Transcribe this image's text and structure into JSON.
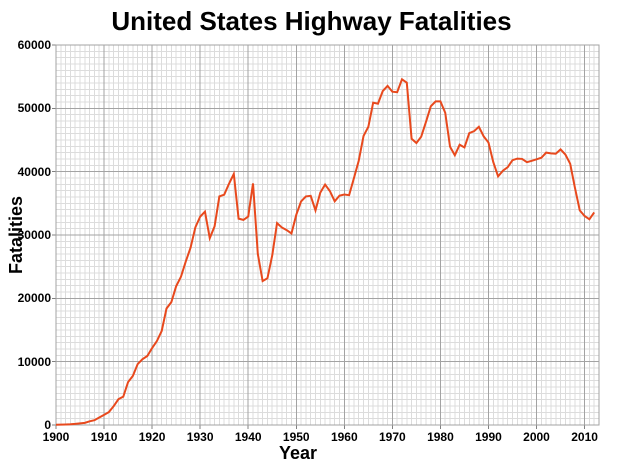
{
  "title": "United States Highway Fatalities",
  "axes": {
    "x_ticks": [
      "1900",
      "1910",
      "1920",
      "1930",
      "1940",
      "1950",
      "1960",
      "1970",
      "1980",
      "1990",
      "2000",
      "2010"
    ],
    "y_ticks": [
      "0",
      "10000",
      "20000",
      "30000",
      "40000",
      "50000",
      "60000"
    ]
  },
  "chart_data": {
    "type": "line",
    "title": "United States Highway Fatalities",
    "xlabel": "Year",
    "ylabel": "Fatalities",
    "xlim": [
      1900,
      2013
    ],
    "ylim": [
      0,
      60000
    ],
    "x_tick_step": 10,
    "y_tick_step": 10000,
    "minor_x_step": 1,
    "minor_y_step": 1000,
    "grid": true,
    "legend": "none",
    "colors": {
      "line": "#E8491D",
      "grid_minor": "#DCDCDC",
      "grid_major": "#A3A3A3",
      "tick": "#808080",
      "text": "#000000",
      "background": "#FFFFFF"
    },
    "series": [
      {
        "name": "Highway fatalities",
        "x": [
          1900,
          1901,
          1902,
          1903,
          1904,
          1905,
          1906,
          1907,
          1908,
          1909,
          1910,
          1911,
          1912,
          1913,
          1914,
          1915,
          1916,
          1917,
          1918,
          1919,
          1920,
          1921,
          1922,
          1923,
          1924,
          1925,
          1926,
          1927,
          1928,
          1929,
          1930,
          1931,
          1932,
          1933,
          1934,
          1935,
          1936,
          1937,
          1938,
          1939,
          1940,
          1941,
          1942,
          1943,
          1944,
          1945,
          1946,
          1947,
          1948,
          1949,
          1950,
          1951,
          1952,
          1953,
          1954,
          1955,
          1956,
          1957,
          1958,
          1959,
          1960,
          1961,
          1962,
          1963,
          1964,
          1965,
          1966,
          1967,
          1968,
          1969,
          1970,
          1971,
          1972,
          1973,
          1974,
          1975,
          1976,
          1977,
          1978,
          1979,
          1980,
          1981,
          1982,
          1983,
          1984,
          1985,
          1986,
          1987,
          1988,
          1989,
          1990,
          1991,
          1992,
          1993,
          1994,
          1995,
          1996,
          1997,
          1998,
          1999,
          2000,
          2001,
          2002,
          2003,
          2004,
          2005,
          2006,
          2007,
          2008,
          2009,
          2010,
          2011,
          2012
        ],
        "values": [
          36,
          54,
          79,
          117,
          172,
          252,
          338,
          581,
          751,
          1174,
          1599,
          2043,
          2968,
          4079,
          4468,
          6779,
          7766,
          9630,
          10390,
          10896,
          12155,
          13253,
          14859,
          18400,
          19400,
          21900,
          23400,
          25800,
          28000,
          31200,
          32900,
          33700,
          29500,
          31363,
          36101,
          36369,
          38089,
          39643,
          32582,
          32386,
          32914,
          38142,
          27007,
          22727,
          23165,
          26785,
          31874,
          31193,
          30775,
          30246,
          33186,
          35309,
          36088,
          36190,
          33890,
          36688,
          37965,
          36932,
          35331,
          36223,
          36399,
          36285,
          38980,
          41723,
          45645,
          47089,
          50894,
          50724,
          52725,
          53543,
          52627,
          52542,
          54589,
          54052,
          45196,
          44525,
          45523,
          47878,
          50331,
          51093,
          51091,
          49301,
          43945,
          42589,
          44257,
          43825,
          46087,
          46390,
          47087,
          45582,
          44599,
          41508,
          39250,
          40150,
          40716,
          41817,
          42065,
          42013,
          41501,
          41717,
          41945,
          42196,
          43005,
          42884,
          42836,
          43510,
          42708,
          41259,
          37423,
          33883,
          32999,
          32479,
          33561
        ]
      }
    ]
  }
}
